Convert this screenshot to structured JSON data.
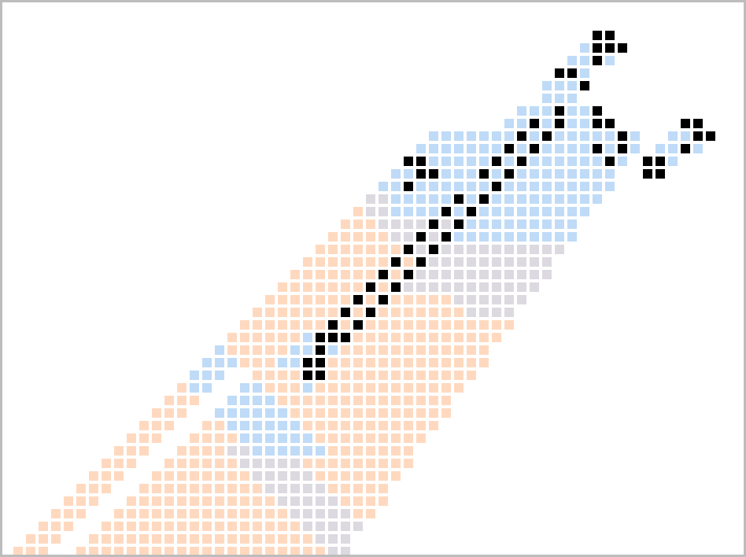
{
  "pattern": {
    "description_tag": "cellular-automaton-trace",
    "colors": {
      "empty": "#ffffff",
      "peach": "#ffd9bf",
      "lavender": "#dcd9e0",
      "blue": "#bfdbf7",
      "black": "#000000",
      "border": "#bdbdbd"
    }
  }
}
